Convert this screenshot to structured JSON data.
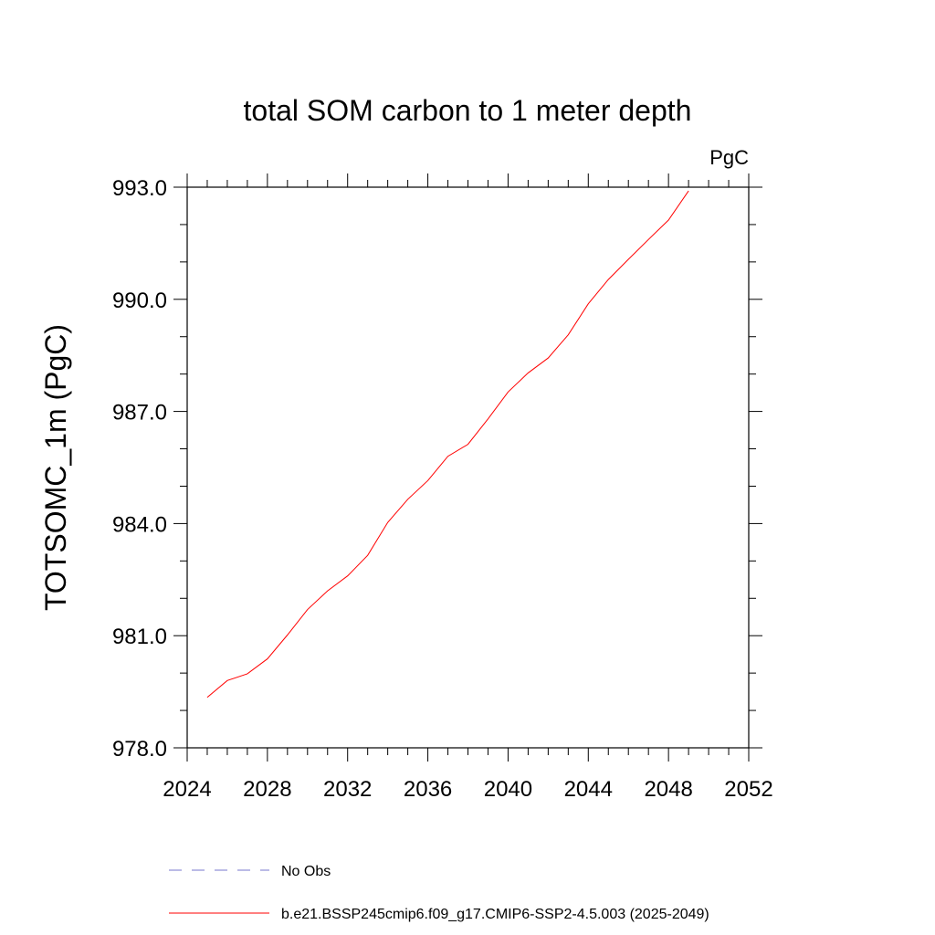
{
  "chart_data": {
    "type": "line",
    "title": "total SOM carbon to 1 meter depth",
    "units_label": "PgC",
    "xlabel": "",
    "ylabel": "TOTSOMC_1m  (PgC)",
    "xlim": [
      2024,
      2052
    ],
    "ylim": [
      978,
      993
    ],
    "x_ticks": [
      2024,
      2028,
      2032,
      2036,
      2040,
      2044,
      2048,
      2052
    ],
    "x_tick_labels": [
      "2024",
      "2028",
      "2032",
      "2036",
      "2040",
      "2044",
      "2048",
      "2052"
    ],
    "x_minor_step": 1,
    "y_ticks": [
      978,
      981,
      984,
      987,
      990,
      993
    ],
    "y_tick_labels": [
      "978.0",
      "981.0",
      "984.0",
      "987.0",
      "990.0",
      "993.0"
    ],
    "y_minor_step": 1,
    "grid": false,
    "series": [
      {
        "name": "b.e21.BSSP245cmip6.f09_g17.CMIP6-SSP2-4.5.003 (2025-2049)",
        "color": "#ff0000",
        "dash": "solid",
        "x": [
          2025,
          2026,
          2027,
          2028,
          2029,
          2030,
          2031,
          2032,
          2033,
          2034,
          2035,
          2036,
          2037,
          2038,
          2039,
          2040,
          2041,
          2042,
          2043,
          2044,
          2045,
          2046,
          2047,
          2048,
          2049
        ],
        "values": [
          979.35,
          979.8,
          979.98,
          980.38,
          981.02,
          981.7,
          982.2,
          982.6,
          983.15,
          984.03,
          984.65,
          985.15,
          985.8,
          986.12,
          986.8,
          987.52,
          988.03,
          988.43,
          989.05,
          989.88,
          990.53,
          991.07,
          991.6,
          992.12,
          992.9
        ]
      }
    ],
    "legend": [
      {
        "label": "No Obs",
        "color": "#7777cc",
        "dash": "dashed"
      },
      {
        "label": "b.e21.BSSP245cmip6.f09_g17.CMIP6-SSP2-4.5.003 (2025-2049)",
        "color": "#ff0000",
        "dash": "solid"
      }
    ],
    "legend_position": "bottom"
  }
}
